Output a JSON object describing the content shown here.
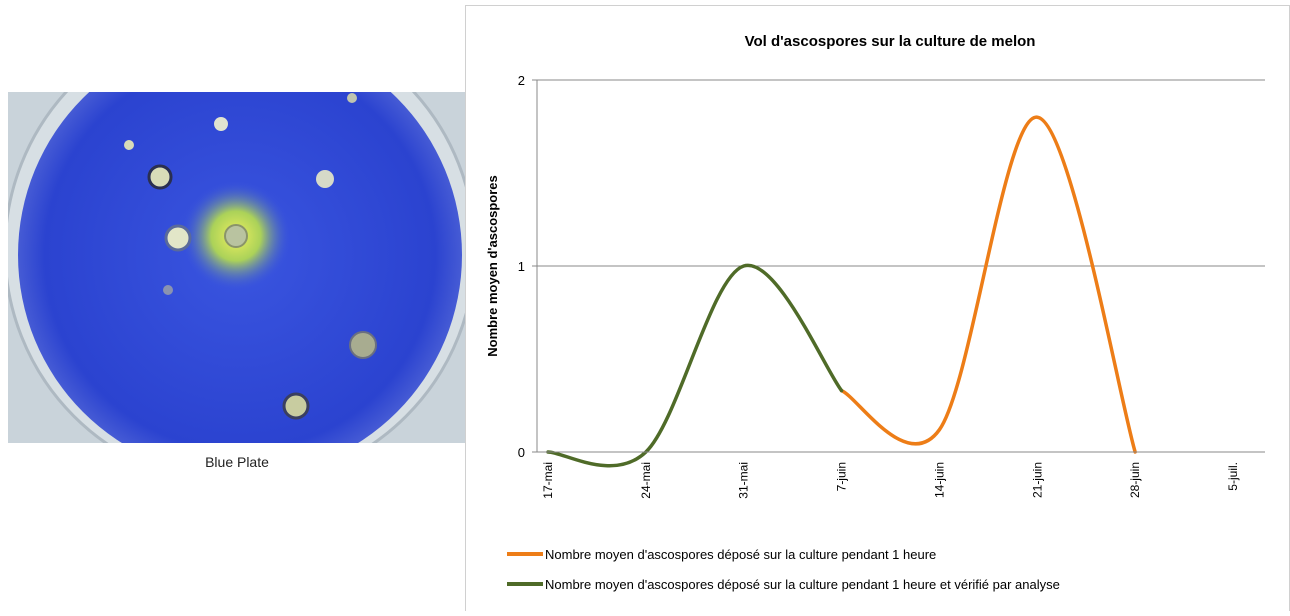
{
  "image": {
    "caption": "Blue Plate"
  },
  "chart_data": {
    "type": "line",
    "title": "Vol d'ascospores sur la culture de melon",
    "y_label": "Nombre moyen d'ascospores",
    "x": [
      "17-mai",
      "24-mai",
      "31-mai",
      "7-juin",
      "14-juin",
      "21-juin",
      "28-juin",
      "5-juil."
    ],
    "series": [
      {
        "name": "Nombre moyen d'ascospores déposé sur la culture pendant 1 heure",
        "color": "#ed7d17",
        "values": [
          null,
          null,
          null,
          0.33,
          0.12,
          1.8,
          0,
          null
        ]
      },
      {
        "name": "Nombre moyen d'ascospores déposé sur la culture pendant 1 heure et vérifié par analyse",
        "color": "#4f6b28",
        "values": [
          0,
          0,
          1,
          0.33,
          null,
          null,
          null,
          null
        ]
      }
    ],
    "ylim": [
      0,
      2
    ],
    "yticks": [
      0,
      1,
      2
    ],
    "grid": true,
    "smooth": true,
    "legend": "bottom"
  }
}
